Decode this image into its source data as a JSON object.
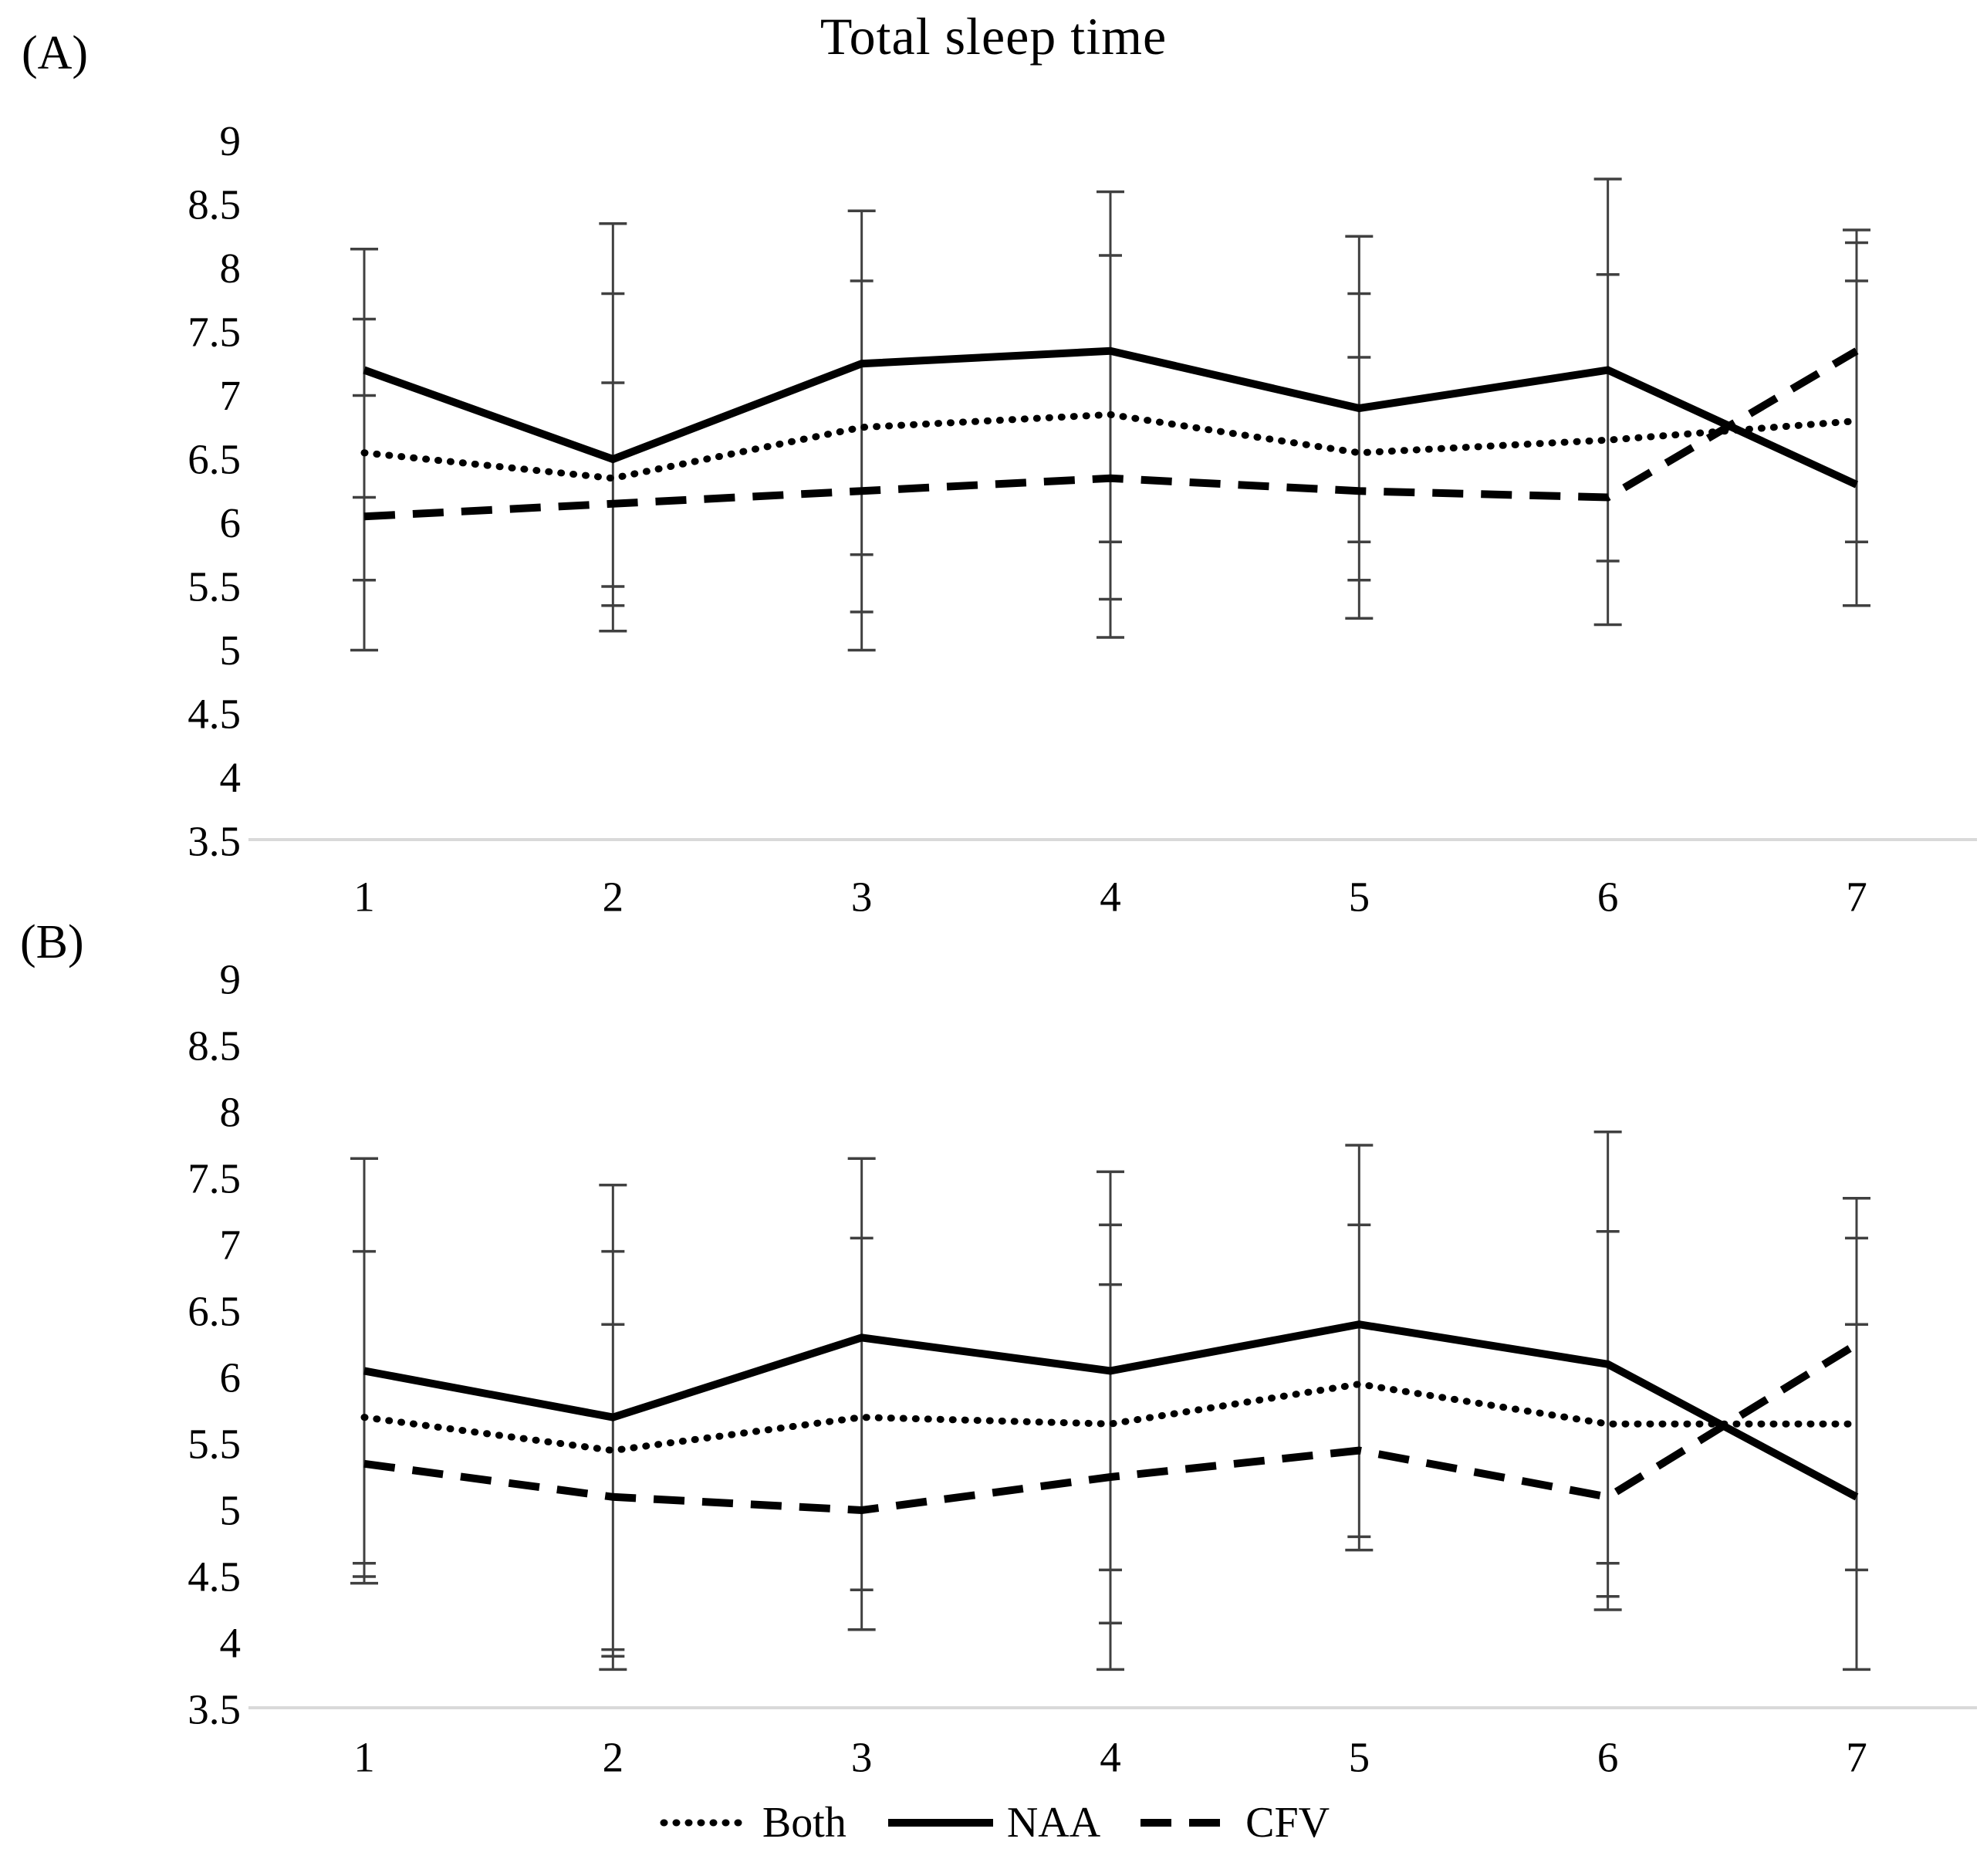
{
  "title": "Total sleep time",
  "legend": {
    "items": [
      {
        "label": "Both",
        "style": "dotted"
      },
      {
        "label": "NAA",
        "style": "solid"
      },
      {
        "label": "CFV",
        "style": "dashed"
      }
    ]
  },
  "colors": {
    "series": "#000000",
    "error_bar": "#404040",
    "axis_line": "#d9d9d9",
    "text": "#000000"
  },
  "chart_data": [
    {
      "type": "line",
      "panel_label": "(A)",
      "title": "Total sleep time",
      "x": [
        1,
        2,
        3,
        4,
        5,
        6,
        7
      ],
      "x_tick_labels": [
        "1",
        "2",
        "3",
        "4",
        "5",
        "6",
        "7"
      ],
      "y_tick_labels": [
        "9",
        "8.5",
        "8",
        "7.5",
        "7",
        "6.5",
        "6",
        "5.5",
        "5",
        "4.5",
        "4",
        "3.5"
      ],
      "ylim": [
        3.5,
        9
      ],
      "ytick_step": 0.5,
      "grid": false,
      "legend_position": "bottom-shared",
      "series": [
        {
          "name": "Both",
          "style": "dotted",
          "values": [
            6.55,
            6.35,
            6.75,
            6.85,
            6.55,
            6.65,
            6.8
          ]
        },
        {
          "name": "NAA",
          "style": "solid",
          "values": [
            7.2,
            6.5,
            7.25,
            7.35,
            6.9,
            7.2,
            6.3
          ]
        },
        {
          "name": "CFV",
          "style": "dashed",
          "values": [
            6.05,
            6.15,
            6.25,
            6.35,
            6.25,
            6.2,
            7.35
          ]
        }
      ],
      "error_bar_caps": [
        [
          8.15,
          7.6,
          7.0,
          6.2,
          5.55,
          5.0
        ],
        [
          8.35,
          7.8,
          7.1,
          5.5,
          5.35,
          5.15
        ],
        [
          8.45,
          7.9,
          5.75,
          5.3,
          5.0
        ],
        [
          8.6,
          8.1,
          5.85,
          5.4,
          5.1
        ],
        [
          8.25,
          7.8,
          7.3,
          5.85,
          5.55,
          5.25
        ],
        [
          8.7,
          7.95,
          5.7,
          5.2
        ],
        [
          8.3,
          8.2,
          7.9,
          5.85,
          5.35
        ]
      ]
    },
    {
      "type": "line",
      "panel_label": "(B)",
      "title": "Total sleep time",
      "x": [
        1,
        2,
        3,
        4,
        5,
        6,
        7
      ],
      "x_tick_labels": [
        "1",
        "2",
        "3",
        "4",
        "5",
        "6",
        "7"
      ],
      "y_tick_labels": [
        "9",
        "8.5",
        "8",
        "7.5",
        "7",
        "6.5",
        "6",
        "5.5",
        "5",
        "4.5",
        "4",
        "3.5"
      ],
      "ylim": [
        3.5,
        9
      ],
      "ytick_step": 0.5,
      "grid": false,
      "legend_position": "bottom-shared",
      "series": [
        {
          "name": "Both",
          "style": "dotted",
          "values": [
            5.7,
            5.45,
            5.7,
            5.65,
            5.95,
            5.65,
            5.65
          ]
        },
        {
          "name": "NAA",
          "style": "solid",
          "values": [
            6.05,
            5.7,
            6.3,
            6.05,
            6.4,
            6.1,
            5.1
          ]
        },
        {
          "name": "CFV",
          "style": "dashed",
          "values": [
            5.35,
            5.1,
            5.0,
            5.25,
            5.45,
            5.1,
            6.25
          ]
        }
      ],
      "error_bar_caps": [
        [
          7.65,
          6.95,
          4.6,
          4.5,
          4.45
        ],
        [
          7.45,
          6.95,
          6.4,
          3.95,
          3.9,
          3.8
        ],
        [
          7.65,
          7.05,
          4.4,
          4.1
        ],
        [
          7.55,
          7.15,
          6.7,
          4.55,
          4.15,
          3.8
        ],
        [
          7.75,
          7.15,
          4.8,
          4.7
        ],
        [
          7.85,
          7.1,
          4.6,
          4.35,
          4.25
        ],
        [
          7.35,
          7.05,
          6.4,
          4.55,
          3.8
        ]
      ]
    }
  ]
}
